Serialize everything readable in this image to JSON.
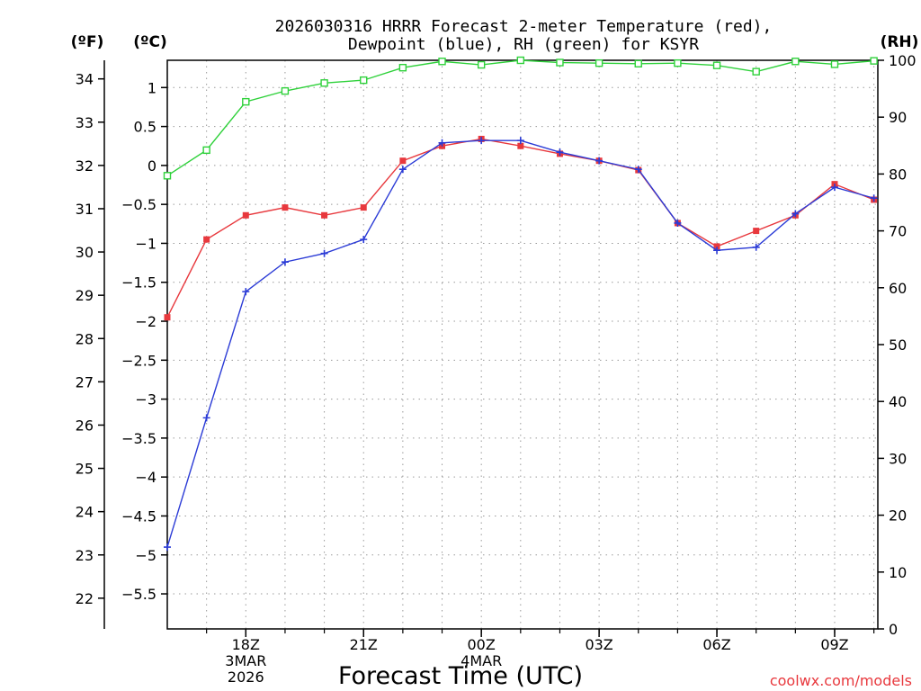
{
  "chart_data": {
    "type": "line",
    "title": [
      "2026030316 HRRR Forecast 2-meter Temperature (red),",
      "Dewpoint (blue), RH (green) for KSYR"
    ],
    "xlabel": "Forecast Time (UTC)",
    "credit": "coolwx.com/models",
    "units": {
      "f": "(ºF)",
      "c": "(ºC)",
      "rh": "(RH)"
    },
    "x_hours": [
      17,
      18,
      19,
      20,
      21,
      22,
      23,
      24,
      25,
      26,
      27,
      28,
      29,
      30,
      31,
      32,
      33,
      34,
      35
    ],
    "x_range": [
      16,
      34.1
    ],
    "x_ticks": [
      {
        "hour": 18,
        "lines": [
          "18Z",
          "3MAR",
          "2026"
        ]
      },
      {
        "hour": 21,
        "lines": [
          "21Z"
        ]
      },
      {
        "hour": 24,
        "lines": [
          "00Z",
          "4MAR"
        ]
      },
      {
        "hour": 27,
        "lines": [
          "03Z"
        ]
      },
      {
        "hour": 30,
        "lines": [
          "06Z"
        ]
      },
      {
        "hour": 33,
        "lines": [
          "09Z"
        ]
      }
    ],
    "celsius_axis": {
      "range": [
        -5.95,
        1.35
      ],
      "ticks": [
        "1",
        "0.5",
        "0",
        "−0.5",
        "−1",
        "−1.5",
        "−2",
        "−2.5",
        "−3",
        "−3.5",
        "−4",
        "−4.5",
        "−5",
        "−5.5"
      ],
      "tick_values": [
        1,
        0.5,
        0,
        -0.5,
        -1,
        -1.5,
        -2,
        -2.5,
        -3,
        -3.5,
        -4,
        -4.5,
        -5,
        -5.5
      ]
    },
    "fahrenheit_axis": {
      "ticks": [
        "34",
        "33",
        "32",
        "31",
        "30",
        "29",
        "28",
        "27",
        "26",
        "25",
        "24",
        "23",
        "22"
      ],
      "tick_values": [
        34,
        33,
        32,
        31,
        30,
        29,
        28,
        27,
        26,
        25,
        24,
        23,
        22
      ]
    },
    "rh_axis": {
      "range": [
        0,
        100
      ],
      "ticks": [
        "100",
        "90",
        "80",
        "70",
        "60",
        "50",
        "40",
        "30",
        "20",
        "10",
        "0"
      ],
      "tick_values": [
        100,
        90,
        80,
        70,
        60,
        50,
        40,
        30,
        20,
        10,
        0
      ]
    },
    "grid": true,
    "series": [
      {
        "name": "Temperature",
        "unit": "C",
        "color": "#e8383d",
        "marker": "square-filled",
        "hours": [
          16,
          17,
          18,
          19,
          20,
          21,
          22,
          23,
          24,
          25,
          26,
          27,
          28,
          29,
          30,
          31,
          32,
          33,
          34
        ],
        "values": [
          -1.95,
          -0.95,
          -0.64,
          -0.54,
          -0.64,
          -0.54,
          0.06,
          0.25,
          0.34,
          0.25,
          0.15,
          0.06,
          -0.06,
          -0.74,
          -1.04,
          -0.84,
          -0.64,
          -0.24,
          -0.44
        ]
      },
      {
        "name": "Dewpoint",
        "unit": "C",
        "color": "#2b3bd6",
        "marker": "plus",
        "hours": [
          16,
          17,
          18,
          19,
          20,
          21,
          22,
          23,
          24,
          25,
          26,
          27,
          28,
          29,
          30,
          31,
          32,
          33,
          34
        ],
        "values": [
          -4.9,
          -3.24,
          -1.62,
          -1.24,
          -1.13,
          -0.95,
          -0.05,
          0.29,
          0.32,
          0.32,
          0.17,
          0.06,
          -0.05,
          -0.74,
          -1.09,
          -1.05,
          -0.62,
          -0.28,
          -0.42
        ]
      },
      {
        "name": "RH",
        "unit": "%",
        "color": "#2ed13a",
        "marker": "square-open",
        "hours": [
          16,
          17,
          18,
          19,
          20,
          21,
          22,
          23,
          24,
          25,
          26,
          27,
          28,
          29,
          30,
          31,
          32,
          33,
          34
        ],
        "values": [
          79.7,
          84.2,
          92.7,
          94.6,
          96.0,
          96.5,
          98.7,
          99.8,
          99.2,
          100,
          99.6,
          99.5,
          99.4,
          99.5,
          99.1,
          98.0,
          99.8,
          99.3,
          99.9
        ]
      }
    ]
  }
}
